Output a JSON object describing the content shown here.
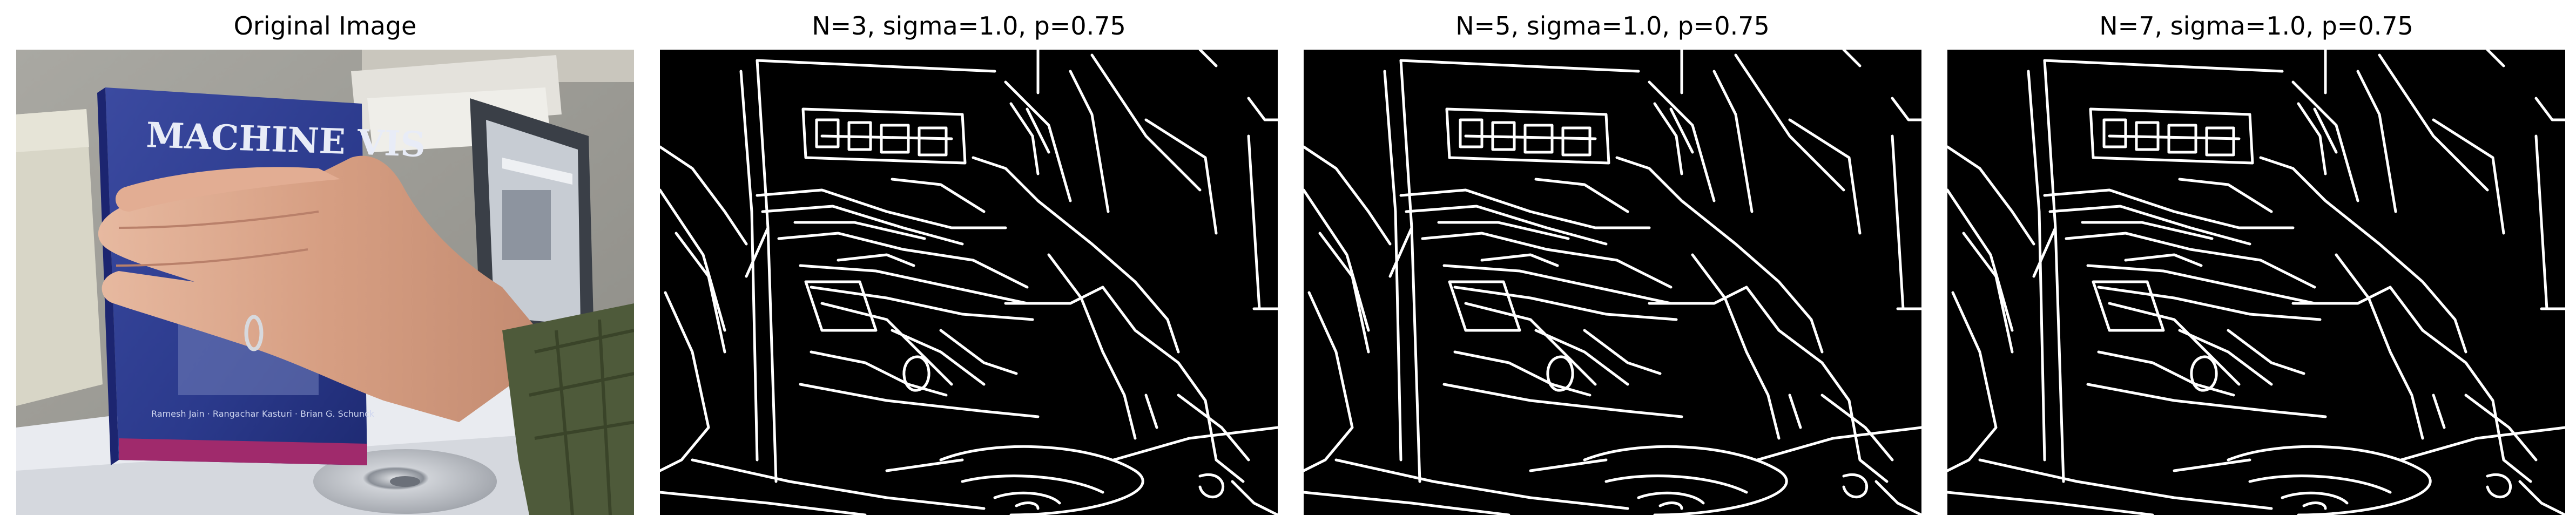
{
  "panels": [
    {
      "title": "Original Image",
      "content": "photo"
    },
    {
      "title": "N=3, sigma=1.0, p=0.75",
      "content": "edges"
    },
    {
      "title": "N=5, sigma=1.0, p=0.75",
      "content": "edges"
    },
    {
      "title": "N=7, sigma=1.0, p=0.75",
      "content": "edges"
    }
  ],
  "book": {
    "title": "MACHINE VIS",
    "authors": "Ramesh Jain · Rangachar Kasturi · Brian G. Schunck"
  },
  "colors": {
    "edge_background": "#000000",
    "edge_line": "#ffffff",
    "book_cover": "#2b3a8c",
    "book_spine": "#1c2570",
    "skin": "#d9a488",
    "sleeve": "#4e5a3a",
    "cd": "#b9bcc2"
  }
}
